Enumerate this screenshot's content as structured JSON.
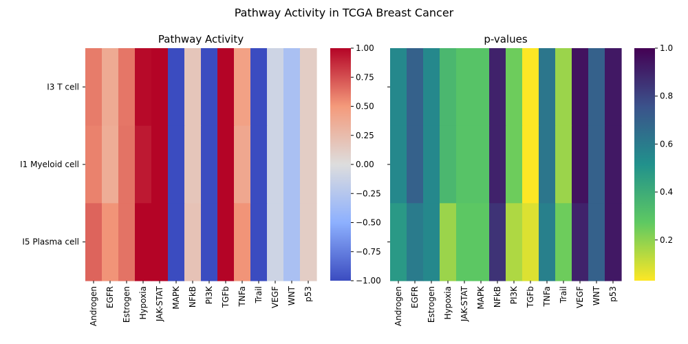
{
  "chart_data": {
    "title": "Pathway Activity in TCGA Breast Cancer",
    "rows": [
      "I3 T cell",
      "I1 Myeloid cell",
      "I5 Plasma cell"
    ],
    "columns": [
      "Androgen",
      "EGFR",
      "Estrogen",
      "Hypoxia",
      "JAK-STAT",
      "MAPK",
      "NFkB",
      "PI3K",
      "TGFb",
      "TNFa",
      "Trail",
      "VEGF",
      "WNT",
      "p53"
    ],
    "panels": [
      {
        "type": "heatmap",
        "title": "Pathway Activity",
        "colormap": "coolwarm",
        "vmin": -1.0,
        "vmax": 1.0,
        "colorbar_ticks": [
          "1.00",
          "0.75",
          "0.50",
          "0.25",
          "0.00",
          "−0.25",
          "−0.50",
          "−0.75",
          "−1.00"
        ],
        "colorbar_tick_values": [
          1.0,
          0.75,
          0.5,
          0.25,
          0.0,
          -0.25,
          -0.5,
          -0.75,
          -1.0
        ],
        "values": [
          [
            0.6,
            0.38,
            0.62,
            0.98,
            1.0,
            -1.0,
            0.18,
            -1.0,
            1.0,
            0.45,
            -1.0,
            -0.1,
            -0.32,
            0.12
          ],
          [
            0.58,
            0.36,
            0.63,
            0.93,
            1.0,
            -1.0,
            0.18,
            -1.0,
            1.0,
            0.4,
            -1.0,
            -0.1,
            -0.32,
            0.12
          ],
          [
            0.68,
            0.52,
            0.63,
            1.0,
            1.0,
            -1.0,
            0.2,
            -1.0,
            1.0,
            0.52,
            -1.0,
            -0.1,
            -0.32,
            0.12
          ]
        ]
      },
      {
        "type": "heatmap",
        "title": "p-values",
        "colormap": "viridis_r",
        "vmin": 0.03,
        "vmax": 1.0,
        "colorbar_ticks": [
          "1.0",
          "0.8",
          "0.6",
          "0.4",
          "0.2"
        ],
        "colorbar_tick_values": [
          1.0,
          0.8,
          0.6,
          0.4,
          0.2
        ],
        "values": [
          [
            0.55,
            0.7,
            0.55,
            0.35,
            0.3,
            0.3,
            0.9,
            0.25,
            0.03,
            0.62,
            0.18,
            0.95,
            0.7,
            0.93
          ],
          [
            0.55,
            0.7,
            0.55,
            0.35,
            0.3,
            0.3,
            0.9,
            0.25,
            0.03,
            0.62,
            0.18,
            0.95,
            0.7,
            0.93
          ],
          [
            0.48,
            0.6,
            0.55,
            0.18,
            0.28,
            0.28,
            0.85,
            0.15,
            0.08,
            0.58,
            0.25,
            0.9,
            0.7,
            0.93
          ]
        ]
      }
    ]
  }
}
